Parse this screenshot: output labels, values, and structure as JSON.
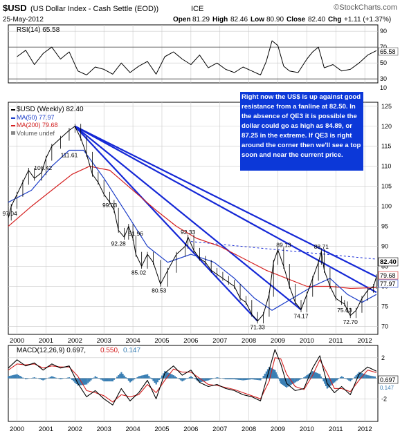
{
  "header": {
    "symbol": "$USD",
    "name": "(US Dollar Index - Cash Settle (EOD))",
    "exchange": "ICE",
    "date": "25-May-2012",
    "brand": "©StockCharts.com",
    "quote": {
      "open_label": "Open",
      "open": "81.29",
      "high_label": "High",
      "high": "82.46",
      "low_label": "Low",
      "low": "80.90",
      "close_label": "Close",
      "close": "82.40",
      "chg_label": "Chg",
      "chg": "+1.11 (+1.37%)"
    }
  },
  "colors": {
    "price": "#000000",
    "ma50": "#1a3cc8",
    "ma200": "#d42020",
    "trendline": "#1528d6",
    "annotation_bg": "#0c38d8",
    "macd_hist": "#3a7fb4",
    "macd_signal": "#d42020",
    "grid": "#c8c8c8"
  },
  "chart_data": [
    {
      "type": "line",
      "title": "RSI(14)",
      "legend": "RSI(14) 65.58",
      "current": 65.58,
      "ylim": [
        25,
        98
      ],
      "y_ticks": [
        90,
        70,
        50,
        30,
        10
      ],
      "reference_lines": [
        70,
        30
      ],
      "series": [
        {
          "name": "RSI(14)",
          "x": [
            2000.0,
            2000.3,
            2000.6,
            2000.9,
            2001.2,
            2001.5,
            2001.8,
            2002.1,
            2002.4,
            2002.7,
            2003.0,
            2003.3,
            2003.6,
            2003.9,
            2004.2,
            2004.5,
            2004.8,
            2005.1,
            2005.4,
            2005.7,
            2006.0,
            2006.3,
            2006.6,
            2006.9,
            2007.2,
            2007.5,
            2007.8,
            2008.1,
            2008.4,
            2008.6,
            2008.8,
            2009.0,
            2009.2,
            2009.4,
            2009.7,
            2010.0,
            2010.2,
            2010.4,
            2010.6,
            2010.9,
            2011.2,
            2011.5,
            2011.8,
            2012.1,
            2012.4
          ],
          "values": [
            58,
            66,
            48,
            62,
            70,
            55,
            64,
            40,
            35,
            45,
            42,
            36,
            50,
            38,
            46,
            52,
            36,
            58,
            64,
            55,
            48,
            60,
            44,
            50,
            42,
            38,
            45,
            40,
            35,
            52,
            78,
            72,
            46,
            40,
            38,
            55,
            64,
            70,
            44,
            48,
            40,
            42,
            50,
            60,
            65.58
          ]
        }
      ]
    },
    {
      "type": "line",
      "title": "$USD (Weekly) 82.40",
      "x_ticks": [
        "2000",
        "2001",
        "2002",
        "2003",
        "2004",
        "2005",
        "2006",
        "2007",
        "2008",
        "2009",
        "2010",
        "2011",
        "2012"
      ],
      "ylim": [
        68,
        126
      ],
      "y_ticks": [
        125,
        120,
        115,
        110,
        105,
        100,
        95,
        90,
        85,
        80,
        75,
        70
      ],
      "legend": [
        {
          "label": "$USD (Weekly) 82.40"
        },
        {
          "label": "MA(50) 77.97"
        },
        {
          "label": "MA(200) 79.68"
        },
        {
          "label": "Volume undef"
        }
      ],
      "last_value_labels": {
        "price": "82.40",
        "ma200": "79.68",
        "ma50": "77.97"
      },
      "price_annotations": [
        {
          "x": 1999.75,
          "y": 97.04,
          "label": "97.04"
        },
        {
          "x": 2000.9,
          "y": 108.42,
          "label": "108.42"
        },
        {
          "x": 2001.8,
          "y": 111.61,
          "label": "111.61"
        },
        {
          "x": 2003.2,
          "y": 99.03,
          "label": "99.03"
        },
        {
          "x": 2003.5,
          "y": 92.28,
          "label": "92.28"
        },
        {
          "x": 2004.1,
          "y": 91.96,
          "label": "91.96"
        },
        {
          "x": 2004.2,
          "y": 85.02,
          "label": "85.02"
        },
        {
          "x": 2004.9,
          "y": 80.53,
          "label": "80.53"
        },
        {
          "x": 2005.9,
          "y": 92.33,
          "label": "92.33"
        },
        {
          "x": 2008.3,
          "y": 71.33,
          "label": "71.33"
        },
        {
          "x": 2009.2,
          "y": 89.13,
          "label": "89.13"
        },
        {
          "x": 2009.8,
          "y": 74.17,
          "label": "74.17"
        },
        {
          "x": 2010.5,
          "y": 88.71,
          "label": "88.71"
        },
        {
          "x": 2011.3,
          "y": 75.63,
          "label": "75.63"
        },
        {
          "x": 2011.5,
          "y": 72.7,
          "label": "72.70"
        }
      ],
      "trendlines": [
        {
          "from": [
            2002.0,
            120.0
          ],
          "to": [
            2012.4,
            82.4
          ]
        },
        {
          "from": [
            2002.0,
            120.0
          ],
          "to": [
            2012.4,
            78.5
          ]
        },
        {
          "from": [
            2002.0,
            120.0
          ],
          "to": [
            2009.8,
            74.17
          ]
        },
        {
          "from": [
            2002.0,
            120.0
          ],
          "to": [
            2008.3,
            71.33
          ]
        },
        {
          "from": [
            2006.0,
            91.2
          ],
          "to": [
            2012.4,
            86.8
          ],
          "dashed": true
        }
      ],
      "annotation_text": "Right now the US$ is up against good resistance from a fanline at 82.50. In the absence of QE3 it is possible the dollar could go as high as 84.89, or 87.25 in the extreme. If QE3 is right around the corner then we'll see a top soon and near the current price.",
      "series": [
        {
          "name": "$USD (Weekly)",
          "x": [
            1999.7,
            1999.8,
            2000.0,
            2000.2,
            2000.4,
            2000.6,
            2000.85,
            2001.0,
            2001.2,
            2001.5,
            2001.8,
            2002.0,
            2002.2,
            2002.4,
            2002.6,
            2002.8,
            2003.0,
            2003.2,
            2003.35,
            2003.5,
            2003.7,
            2003.85,
            2004.0,
            2004.1,
            2004.3,
            2004.5,
            2004.7,
            2004.95,
            2005.2,
            2005.5,
            2005.8,
            2005.9,
            2006.1,
            2006.3,
            2006.5,
            2006.7,
            2006.9,
            2007.1,
            2007.3,
            2007.5,
            2007.7,
            2007.9,
            2008.1,
            2008.3,
            2008.5,
            2008.7,
            2008.85,
            2009.0,
            2009.2,
            2009.4,
            2009.6,
            2009.8,
            2010.0,
            2010.2,
            2010.4,
            2010.5,
            2010.6,
            2010.8,
            2011.0,
            2011.2,
            2011.3,
            2011.4,
            2011.5,
            2011.7,
            2011.9,
            2012.1,
            2012.3,
            2012.4
          ],
          "values": [
            97.04,
            100,
            103,
            106,
            109,
            107,
            108.42,
            112,
            115,
            117,
            119,
            120,
            117,
            113,
            108,
            106,
            103,
            101,
            99.03,
            94,
            92.28,
            95,
            91.96,
            88,
            85.02,
            88,
            86,
            80.53,
            84,
            88,
            90,
            92.33,
            89,
            87,
            86,
            84,
            83,
            82,
            81,
            80,
            77,
            76,
            73,
            71.33,
            73,
            78,
            86,
            89.13,
            85,
            80,
            76,
            74.17,
            78,
            82,
            86,
            88.71,
            84,
            80,
            77,
            76,
            75.63,
            74,
            72.7,
            74,
            77,
            79,
            80,
            82.4
          ]
        },
        {
          "name": "MA(50)",
          "x": [
            1999.7,
            2000.5,
            2001.2,
            2001.8,
            2002.3,
            2003.0,
            2003.8,
            2004.5,
            2005.2,
            2006.0,
            2006.8,
            2007.5,
            2008.2,
            2008.8,
            2009.5,
            2010.2,
            2010.8,
            2011.4,
            2011.9,
            2012.4
          ],
          "values": [
            101,
            104,
            110,
            114,
            114,
            107,
            98,
            90,
            86,
            88,
            86,
            82,
            77,
            74,
            77,
            80,
            82,
            78,
            76,
            77.97
          ]
        },
        {
          "name": "MA(200)",
          "x": [
            1999.7,
            2000.5,
            2001.2,
            2001.9,
            2002.5,
            2003.2,
            2004.0,
            2004.8,
            2005.5,
            2006.2,
            2007.0,
            2007.8,
            2008.6,
            2009.3,
            2010.0,
            2010.8,
            2011.5,
            2012.4
          ],
          "values": [
            95,
            100,
            104,
            108,
            110,
            109,
            104,
            99,
            95,
            92,
            90,
            87,
            84,
            82,
            80,
            80,
            79.5,
            79.68
          ]
        }
      ]
    },
    {
      "type": "line",
      "title": "MACD(12,26,9)",
      "legend": [
        {
          "label": "MACD(12,26,9) 0.697,"
        },
        {
          "label": "0.550,"
        },
        {
          "label": "0.147"
        }
      ],
      "last_value_label": "0.697",
      "hist_last": "0.147",
      "ylim": [
        -4.2,
        3.2
      ],
      "y_ticks": [
        2,
        0,
        -2
      ],
      "x_ticks": [
        "2000",
        "2001",
        "2002",
        "2003",
        "2004",
        "2005",
        "2006",
        "2007",
        "2008",
        "2009",
        "2010",
        "2011",
        "2012"
      ],
      "series": [
        {
          "name": "MACD",
          "x": [
            1999.7,
            2000.0,
            2000.3,
            2000.6,
            2000.9,
            2001.2,
            2001.5,
            2001.8,
            2002.1,
            2002.4,
            2002.7,
            2003.0,
            2003.3,
            2003.6,
            2003.9,
            2004.2,
            2004.5,
            2004.8,
            2005.1,
            2005.4,
            2005.7,
            2006.0,
            2006.3,
            2006.6,
            2006.9,
            2007.2,
            2007.5,
            2007.8,
            2008.1,
            2008.4,
            2008.7,
            2008.9,
            2009.1,
            2009.3,
            2009.6,
            2009.9,
            2010.2,
            2010.45,
            2010.7,
            2010.95,
            2011.2,
            2011.5,
            2011.8,
            2012.1,
            2012.4
          ],
          "values": [
            1.0,
            1.8,
            1.2,
            1.5,
            0.8,
            1.4,
            1.0,
            1.2,
            -0.5,
            -1.8,
            -1.2,
            -2.0,
            -2.6,
            -1.0,
            -2.2,
            -1.4,
            -0.2,
            -2.0,
            0.5,
            1.2,
            0.3,
            0.8,
            -0.4,
            -0.8,
            -0.6,
            -1.0,
            -1.2,
            -1.6,
            -1.8,
            -2.2,
            0.8,
            2.8,
            1.4,
            -0.5,
            -1.2,
            -1.0,
            1.0,
            2.2,
            -0.5,
            -1.4,
            -0.8,
            -1.6,
            0.4,
            1.1,
            0.697
          ]
        },
        {
          "name": "Signal",
          "x": [
            1999.7,
            2000.0,
            2000.3,
            2000.6,
            2000.9,
            2001.2,
            2001.5,
            2001.8,
            2002.1,
            2002.4,
            2002.7,
            2003.0,
            2003.3,
            2003.6,
            2003.9,
            2004.2,
            2004.5,
            2004.8,
            2005.1,
            2005.4,
            2005.7,
            2006.0,
            2006.3,
            2006.6,
            2006.9,
            2007.2,
            2007.5,
            2007.8,
            2008.1,
            2008.4,
            2008.7,
            2008.9,
            2009.1,
            2009.3,
            2009.6,
            2009.9,
            2010.2,
            2010.45,
            2010.7,
            2010.95,
            2011.2,
            2011.5,
            2011.8,
            2012.1,
            2012.4
          ],
          "values": [
            0.8,
            1.4,
            1.3,
            1.4,
            1.0,
            1.2,
            1.1,
            1.1,
            0.2,
            -1.2,
            -1.4,
            -1.7,
            -2.3,
            -1.6,
            -1.8,
            -1.6,
            -0.6,
            -1.4,
            -0.2,
            0.9,
            0.6,
            0.6,
            0.0,
            -0.6,
            -0.7,
            -0.9,
            -1.1,
            -1.4,
            -1.7,
            -2.0,
            -0.3,
            2.0,
            1.9,
            0.4,
            -0.8,
            -1.1,
            0.3,
            1.8,
            0.5,
            -1.0,
            -1.0,
            -1.3,
            -0.2,
            0.8,
            0.55
          ]
        },
        {
          "name": "Histogram",
          "x": [
            1999.7,
            2000.0,
            2000.3,
            2000.6,
            2000.9,
            2001.2,
            2001.5,
            2001.8,
            2002.1,
            2002.4,
            2002.7,
            2003.0,
            2003.3,
            2003.6,
            2003.9,
            2004.2,
            2004.5,
            2004.8,
            2005.1,
            2005.4,
            2005.7,
            2006.0,
            2006.3,
            2006.6,
            2006.9,
            2007.2,
            2007.5,
            2007.8,
            2008.1,
            2008.4,
            2008.7,
            2008.9,
            2009.1,
            2009.3,
            2009.6,
            2009.9,
            2010.2,
            2010.45,
            2010.7,
            2010.95,
            2011.2,
            2011.5,
            2011.8,
            2012.1,
            2012.4
          ],
          "values": [
            0.2,
            0.4,
            -0.1,
            0.1,
            -0.2,
            0.2,
            -0.1,
            0.1,
            -0.7,
            -0.6,
            0.2,
            -0.3,
            -0.3,
            0.6,
            -0.4,
            0.2,
            0.4,
            -0.6,
            0.7,
            0.3,
            -0.3,
            0.2,
            -0.4,
            -0.2,
            0.1,
            -0.1,
            -0.1,
            -0.2,
            -0.1,
            -0.2,
            1.1,
            0.8,
            -0.5,
            -0.9,
            -0.4,
            0.1,
            0.7,
            0.4,
            -1.0,
            -0.4,
            0.2,
            -0.3,
            0.6,
            0.3,
            0.147
          ]
        }
      ]
    }
  ]
}
